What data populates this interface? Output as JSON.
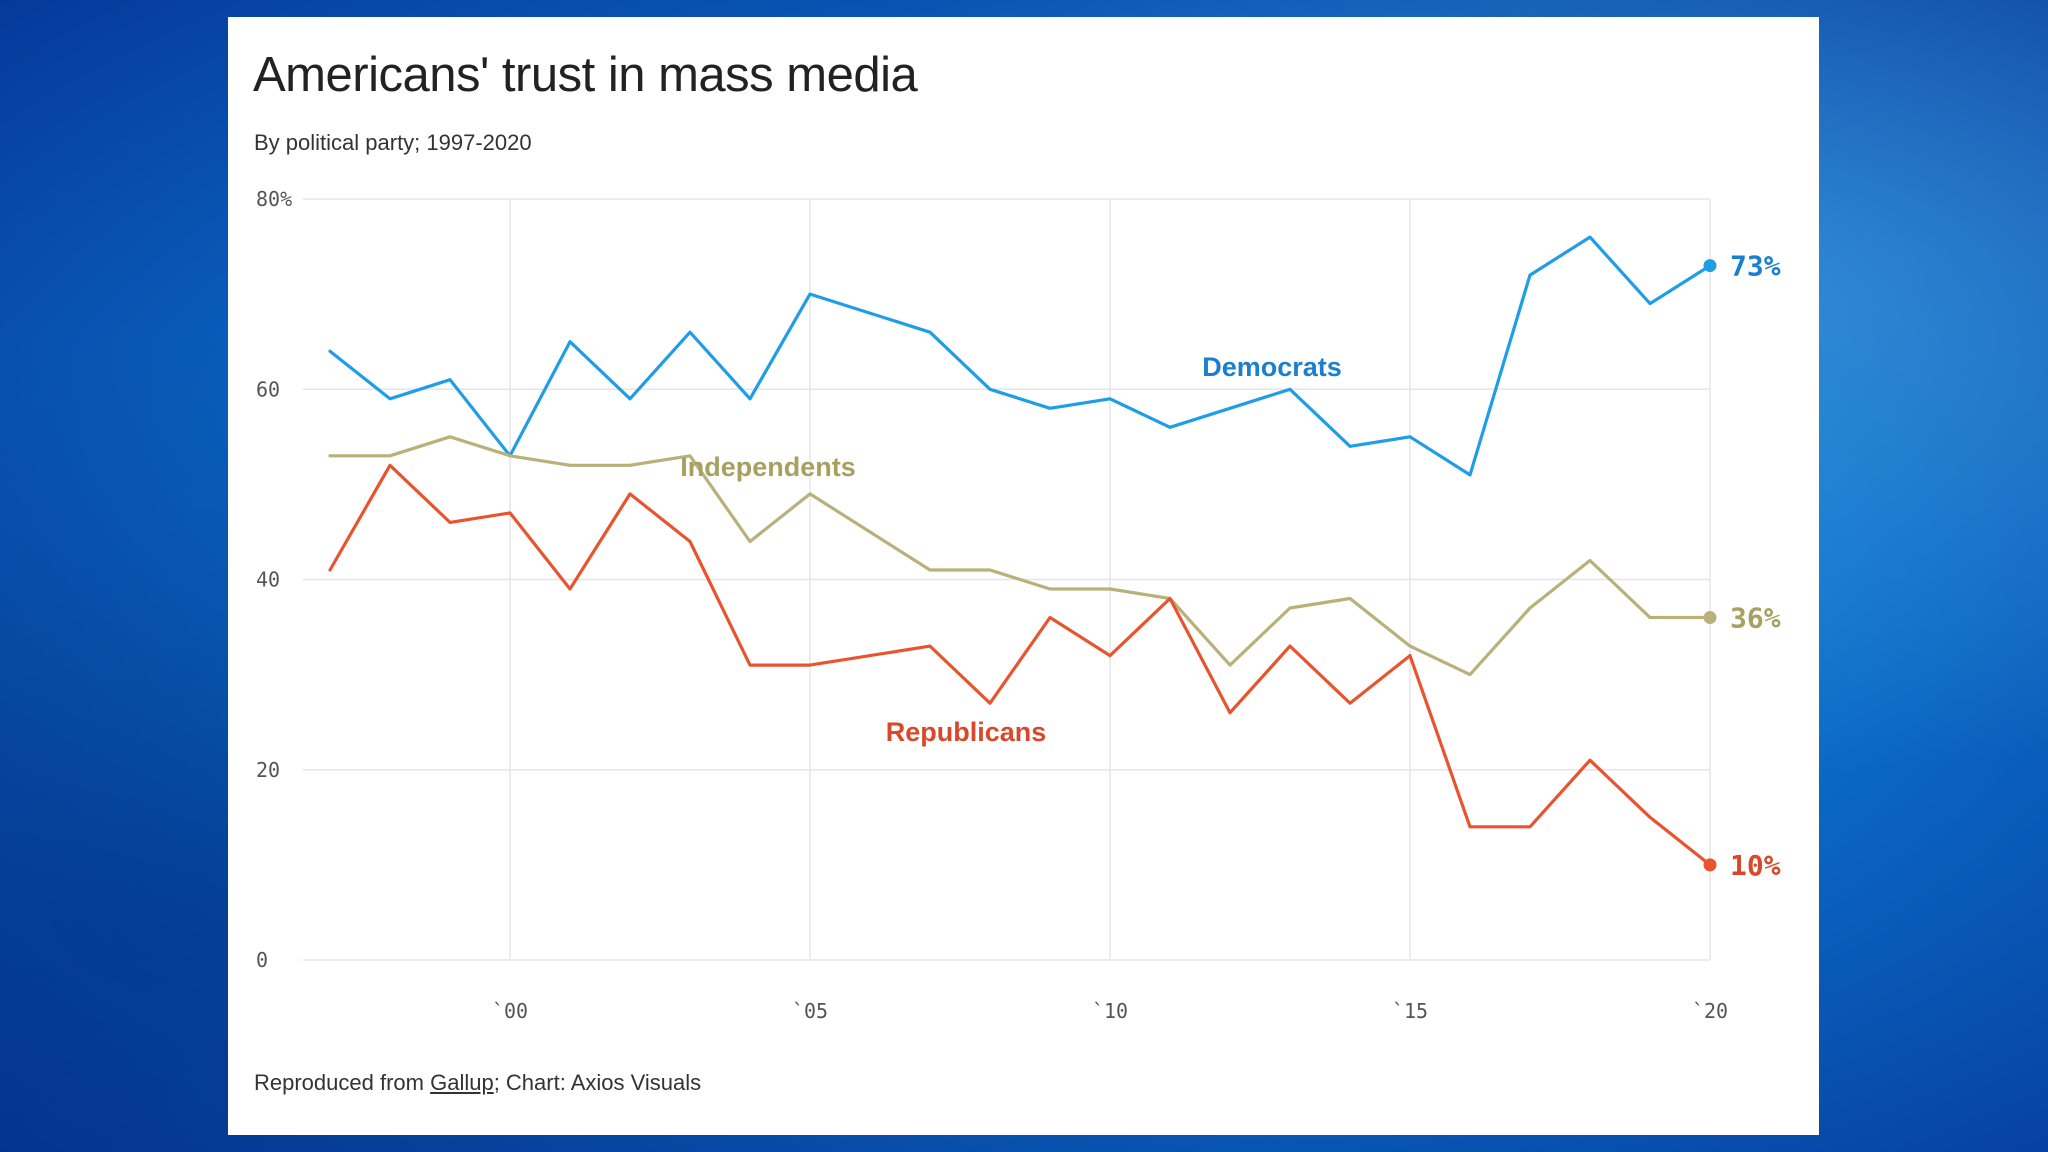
{
  "chart": {
    "title": "Americans' trust in mass media",
    "subtitle": "By political party; 1997-2020",
    "source_prefix": "Reproduced from ",
    "source_link": "Gallup",
    "source_suffix": "; Chart: Axios Visuals"
  },
  "chart_data": {
    "type": "line",
    "title": "Americans' trust in mass media",
    "subtitle": "By political party; 1997-2020",
    "xlabel": "",
    "ylabel": "",
    "xlim": [
      1997,
      2020
    ],
    "ylim": [
      0,
      80
    ],
    "grid": true,
    "legend": "inline labels",
    "x_ticks": [
      2000,
      2005,
      2010,
      2015,
      2020
    ],
    "x_tick_labels": [
      "`00",
      "`05",
      "`10",
      "`15",
      "`20"
    ],
    "y_ticks": [
      0,
      20,
      40,
      60,
      80
    ],
    "y_tick_labels": [
      "0",
      "20",
      "40",
      "60",
      "80%"
    ],
    "x": [
      1997,
      1998,
      1999,
      2000,
      2001,
      2002,
      2003,
      2004,
      2005,
      2007,
      2008,
      2009,
      2010,
      2011,
      2012,
      2013,
      2014,
      2015,
      2016,
      2017,
      2018,
      2019,
      2020
    ],
    "series": [
      {
        "name": "Democrats",
        "color": "#1f9de6",
        "label_color": "#1a7fd1",
        "end_label": "73%",
        "values": [
          64,
          59,
          61,
          53,
          65,
          59,
          66,
          59,
          70,
          66,
          60,
          58,
          59,
          56,
          58,
          60,
          54,
          55,
          51,
          72,
          76,
          69,
          73
        ]
      },
      {
        "name": "Independents",
        "color": "#b9b07a",
        "label_color": "#a8a060",
        "end_label": "36%",
        "values": [
          53,
          53,
          55,
          53,
          52,
          52,
          53,
          44,
          49,
          41,
          41,
          39,
          39,
          38,
          31,
          37,
          38,
          33,
          30,
          37,
          42,
          36,
          36
        ]
      },
      {
        "name": "Republicans",
        "color": "#e8542e",
        "label_color": "#d9482a",
        "end_label": "10%",
        "values": [
          41,
          52,
          46,
          47,
          39,
          49,
          44,
          31,
          31,
          33,
          27,
          36,
          32,
          38,
          26,
          33,
          27,
          32,
          14,
          14,
          21,
          15,
          10
        ]
      }
    ]
  }
}
